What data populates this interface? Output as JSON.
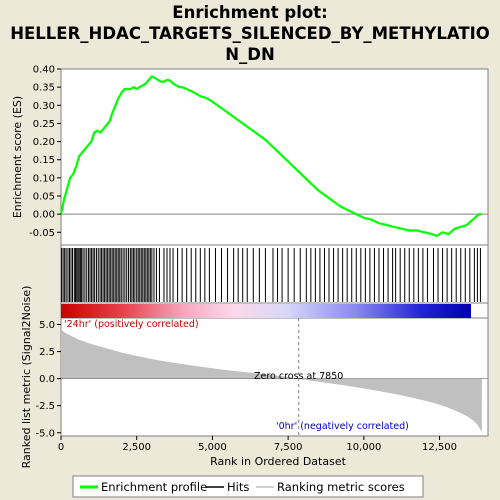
{
  "title_lines": [
    "Enrichment plot:",
    "HELLER_HDAC_TARGETS_SILENCED_BY_METHYLATIO",
    "N_DN"
  ],
  "colors": {
    "background": "#ECE9D8",
    "enrichment_line": "#00FF00",
    "hits": "#000000",
    "metric_fill": "#C0C0C0",
    "positive_label": "#CC0000",
    "negative_label": "#0000CC",
    "zero_line": "#808080"
  },
  "chart_data": [
    {
      "type": "line",
      "name": "enrichment-profile",
      "ylabel": "Enrichment score (ES)",
      "xlim": [
        0,
        14100
      ],
      "ylim": [
        -0.085,
        0.4
      ],
      "y_ticks": [
        -0.05,
        0.0,
        0.05,
        0.1,
        0.15,
        0.2,
        0.25,
        0.3,
        0.35,
        0.4
      ],
      "y_tick_labels": [
        "-0.05",
        "0.00",
        "0.05",
        "0.10",
        "0.15",
        "0.20",
        "0.25",
        "0.30",
        "0.35",
        "0.40"
      ],
      "x": [
        0,
        100,
        200,
        300,
        400,
        500,
        600,
        700,
        800,
        900,
        1000,
        1100,
        1200,
        1300,
        1400,
        1500,
        1600,
        1700,
        1800,
        1900,
        2000,
        2100,
        2200,
        2300,
        2400,
        2500,
        2600,
        2700,
        2800,
        2900,
        3000,
        3100,
        3200,
        3300,
        3400,
        3500,
        3600,
        3700,
        3800,
        3900,
        4000,
        4200,
        4400,
        4600,
        4800,
        5000,
        5250,
        5500,
        5750,
        6000,
        6250,
        6500,
        6750,
        7000,
        7250,
        7500,
        7750,
        8000,
        8250,
        8500,
        8750,
        9000,
        9250,
        9500,
        9750,
        10000,
        10250,
        10500,
        10750,
        11000,
        11250,
        11500,
        11750,
        12000,
        12250,
        12400,
        12600,
        12800,
        13000,
        13200,
        13400,
        13600,
        13800,
        13900
      ],
      "y": [
        0.0,
        0.04,
        0.07,
        0.1,
        0.11,
        0.13,
        0.16,
        0.17,
        0.18,
        0.19,
        0.2,
        0.225,
        0.23,
        0.225,
        0.235,
        0.245,
        0.255,
        0.28,
        0.3,
        0.32,
        0.335,
        0.345,
        0.345,
        0.345,
        0.35,
        0.345,
        0.35,
        0.355,
        0.36,
        0.37,
        0.38,
        0.375,
        0.37,
        0.365,
        0.365,
        0.37,
        0.368,
        0.36,
        0.355,
        0.35,
        0.35,
        0.343,
        0.335,
        0.325,
        0.32,
        0.31,
        0.295,
        0.28,
        0.265,
        0.25,
        0.235,
        0.22,
        0.205,
        0.185,
        0.165,
        0.145,
        0.125,
        0.105,
        0.085,
        0.065,
        0.05,
        0.035,
        0.02,
        0.01,
        0.0,
        -0.01,
        -0.015,
        -0.025,
        -0.03,
        -0.035,
        -0.04,
        -0.045,
        -0.045,
        -0.05,
        -0.055,
        -0.06,
        -0.05,
        -0.055,
        -0.04,
        -0.035,
        -0.03,
        -0.015,
        0.0,
        0.0
      ]
    },
    {
      "type": "hits",
      "name": "hits",
      "positions": [
        20,
        70,
        120,
        170,
        230,
        280,
        330,
        380,
        440,
        480,
        520,
        560,
        600,
        640,
        680,
        730,
        790,
        850,
        910,
        960,
        1010,
        1060,
        1110,
        1170,
        1230,
        1290,
        1340,
        1390,
        1440,
        1490,
        1540,
        1590,
        1640,
        1690,
        1740,
        1790,
        1840,
        1890,
        1940,
        1990,
        2050,
        2110,
        2170,
        2230,
        2290,
        2340,
        2390,
        2440,
        2500,
        2550,
        2600,
        2650,
        2700,
        2750,
        2800,
        2850,
        2900,
        2950,
        3000,
        3070,
        3150,
        3250,
        3400,
        3500,
        3600,
        3700,
        3850,
        4000,
        4150,
        4300,
        4450,
        4600,
        4750,
        4900,
        5100,
        5300,
        5500,
        5700,
        5850,
        6000,
        6150,
        6350,
        6550,
        6750,
        7000,
        7150,
        7300,
        7500,
        7700,
        7900,
        8100,
        8250,
        8400,
        8550,
        8700,
        8850,
        9000,
        9150,
        9300,
        9450,
        9600,
        9750,
        9900,
        10050,
        10200,
        10350,
        10500,
        10650,
        10800,
        10950,
        11050,
        11200,
        11350,
        11500,
        11650,
        11800,
        11950,
        12100,
        12300,
        12450,
        12600,
        12750,
        12900,
        13050,
        13200,
        13350,
        13500,
        13650,
        13750,
        13850
      ]
    },
    {
      "type": "area",
      "name": "ranked-list-metric",
      "xlabel": "Rank in Ordered Dataset",
      "ylabel": "Ranked list metric (Signal2Noise)",
      "xlim": [
        0,
        14100
      ],
      "ylim": [
        -5.3,
        5.6
      ],
      "y_ticks": [
        -5.0,
        -2.5,
        0.0,
        2.5,
        5.0
      ],
      "y_tick_labels": [
        "-5.0",
        "-2.5",
        "0.0",
        "2.5",
        "5.0"
      ],
      "x_ticks": [
        0,
        2500,
        5000,
        7500,
        10000,
        12500
      ],
      "x_tick_labels": [
        "0",
        "2,500",
        "5,000",
        "7,500",
        "10,000",
        "12,500"
      ],
      "x": [
        0,
        100,
        300,
        600,
        1000,
        1500,
        2000,
        2500,
        3000,
        3500,
        4000,
        4500,
        5000,
        5500,
        6000,
        6500,
        7000,
        7500,
        7850,
        8250,
        8750,
        9250,
        9750,
        10250,
        10750,
        11250,
        11750,
        12250,
        12750,
        13100,
        13400,
        13600,
        13750,
        13850,
        13900
      ],
      "y": [
        4.6,
        4.3,
        4.0,
        3.6,
        3.2,
        2.8,
        2.4,
        2.1,
        1.8,
        1.55,
        1.35,
        1.15,
        0.95,
        0.78,
        0.62,
        0.46,
        0.32,
        0.16,
        0.0,
        -0.18,
        -0.38,
        -0.58,
        -0.8,
        -1.02,
        -1.28,
        -1.55,
        -1.85,
        -2.2,
        -2.65,
        -3.05,
        -3.45,
        -3.85,
        -4.25,
        -4.7,
        -5.0
      ],
      "zero_cross": 7850,
      "zero_cross_label": "Zero cross at 7850",
      "positive_label": "'24hr' (positively correlated)",
      "negative_label": "'0hr' (negatively correlated)"
    }
  ],
  "legend": {
    "placement": "bottom",
    "items": [
      {
        "label": "Enrichment profile",
        "color": "#00FF00",
        "style": "thick-line"
      },
      {
        "label": "Hits",
        "color": "#000000",
        "style": "line"
      },
      {
        "label": "Ranking metric scores",
        "color": "#C0C0C0",
        "style": "line"
      }
    ]
  }
}
